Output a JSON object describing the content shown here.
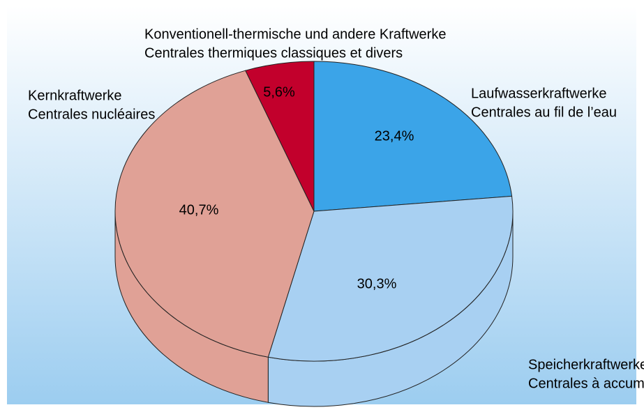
{
  "chart_data": {
    "type": "pie",
    "categories": [
      [
        "Laufwasserkraftwerke",
        "Centrales au fil de l’eau"
      ],
      [
        "Speicherkraftwerke",
        "Centrales à accumulation"
      ],
      [
        "Kernkraftwerke",
        "Centrales nucléaires"
      ],
      [
        "Konventionell-thermische und andere Kraftwerke",
        "Centrales thermiques classiques et divers"
      ]
    ],
    "values": [
      23.4,
      30.3,
      40.7,
      5.6
    ],
    "value_labels": [
      "23,4%",
      "30,3%",
      "40,7%",
      "5,6%"
    ],
    "colors": [
      "#3ba4e8",
      "#a8d0f2",
      "#e0a196",
      "#c2002c"
    ]
  }
}
